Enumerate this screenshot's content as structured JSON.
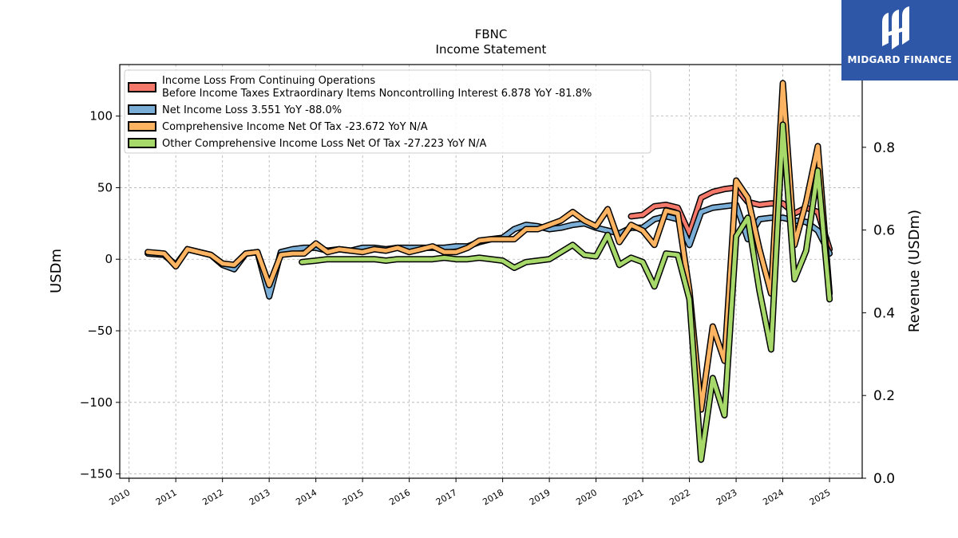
{
  "brand": {
    "name": "MIDGARD FINANCE",
    "logo_icon": "midgard-logo-icon",
    "color": "#2f57a8"
  },
  "chart_data": {
    "type": "line",
    "title": "FBNC",
    "subtitle": "Income Statement",
    "ylabel": "USDm",
    "y2label": "Revenue (USDm)",
    "ylim": [
      -153,
      136
    ],
    "y2lim": [
      0.0,
      1.0
    ],
    "xlim": [
      2009.8,
      2025.7
    ],
    "x_ticks": [
      "2010",
      "2011",
      "2012",
      "2013",
      "2014",
      "2015",
      "2016",
      "2017",
      "2018",
      "2019",
      "2020",
      "2021",
      "2022",
      "2023",
      "2024",
      "2025"
    ],
    "y_ticks": [
      "−150",
      "−100",
      "−50",
      "0",
      "50",
      "100"
    ],
    "y2_ticks": [
      "0.0",
      "0.2",
      "0.4",
      "0.6",
      "0.8"
    ],
    "grid": true,
    "legend_position": "top-left",
    "series": [
      {
        "name": "Income Loss From Continuing Operations",
        "name2": "Before Income Taxes Extraordinary Items Noncontrolling Interest  6.878 YoY -81.8%",
        "color": "#f4796b",
        "points": [
          [
            2020.75,
            30
          ],
          [
            2021.0,
            31
          ],
          [
            2021.25,
            37
          ],
          [
            2021.5,
            38
          ],
          [
            2021.75,
            36
          ],
          [
            2022.0,
            18
          ],
          [
            2022.25,
            43
          ],
          [
            2022.5,
            47
          ],
          [
            2022.75,
            49
          ],
          [
            2023.0,
            50
          ],
          [
            2023.25,
            40
          ],
          [
            2023.5,
            38
          ],
          [
            2023.75,
            39
          ],
          [
            2024.0,
            39
          ],
          [
            2024.25,
            32
          ],
          [
            2024.5,
            36
          ],
          [
            2024.75,
            33
          ],
          [
            2025.0,
            7
          ]
        ]
      },
      {
        "name": "Net Income Loss  3.551 YoY -88.0%",
        "color": "#7aaed6",
        "points": [
          [
            2010.4,
            4
          ],
          [
            2010.75,
            3
          ],
          [
            2011.0,
            -4
          ],
          [
            2011.25,
            7
          ],
          [
            2011.5,
            5
          ],
          [
            2011.75,
            3
          ],
          [
            2012.0,
            -4
          ],
          [
            2012.25,
            -7
          ],
          [
            2012.5,
            4
          ],
          [
            2012.75,
            5
          ],
          [
            2013.0,
            -26
          ],
          [
            2013.25,
            5
          ],
          [
            2013.5,
            7
          ],
          [
            2013.75,
            8
          ],
          [
            2014.0,
            8
          ],
          [
            2014.25,
            6
          ],
          [
            2014.5,
            7
          ],
          [
            2014.75,
            6
          ],
          [
            2015.0,
            8
          ],
          [
            2015.25,
            8
          ],
          [
            2015.5,
            7
          ],
          [
            2015.75,
            8
          ],
          [
            2016.0,
            8
          ],
          [
            2016.25,
            8
          ],
          [
            2016.5,
            8
          ],
          [
            2016.75,
            8
          ],
          [
            2017.0,
            9
          ],
          [
            2017.25,
            9
          ],
          [
            2017.5,
            12
          ],
          [
            2017.75,
            14
          ],
          [
            2018.0,
            15
          ],
          [
            2018.25,
            21
          ],
          [
            2018.5,
            24
          ],
          [
            2018.75,
            23
          ],
          [
            2019.0,
            21
          ],
          [
            2019.25,
            22
          ],
          [
            2019.5,
            24
          ],
          [
            2019.75,
            25
          ],
          [
            2020.0,
            22
          ],
          [
            2020.25,
            20
          ],
          [
            2020.5,
            18
          ],
          [
            2020.75,
            22
          ],
          [
            2021.0,
            22
          ],
          [
            2021.25,
            28
          ],
          [
            2021.5,
            30
          ],
          [
            2021.75,
            28
          ],
          [
            2022.0,
            10
          ],
          [
            2022.25,
            33
          ],
          [
            2022.5,
            36
          ],
          [
            2022.75,
            37
          ],
          [
            2023.0,
            38
          ],
          [
            2023.25,
            14
          ],
          [
            2023.5,
            28
          ],
          [
            2023.75,
            29
          ],
          [
            2024.0,
            29
          ],
          [
            2024.25,
            27
          ],
          [
            2024.5,
            26
          ],
          [
            2024.75,
            20
          ],
          [
            2025.0,
            4
          ]
        ]
      },
      {
        "name": "Comprehensive Income Net Of Tax  -23.672 YoY N/A",
        "color": "#fdb462",
        "points": [
          [
            2010.4,
            5
          ],
          [
            2010.75,
            4
          ],
          [
            2011.0,
            -5
          ],
          [
            2011.25,
            7
          ],
          [
            2011.5,
            5
          ],
          [
            2011.75,
            3
          ],
          [
            2012.0,
            -3
          ],
          [
            2012.25,
            -4
          ],
          [
            2012.5,
            4
          ],
          [
            2012.75,
            5
          ],
          [
            2013.0,
            -18
          ],
          [
            2013.25,
            3
          ],
          [
            2013.5,
            4
          ],
          [
            2013.75,
            4
          ],
          [
            2014.0,
            11
          ],
          [
            2014.25,
            5
          ],
          [
            2014.5,
            7
          ],
          [
            2014.75,
            6
          ],
          [
            2015.0,
            5
          ],
          [
            2015.25,
            7
          ],
          [
            2015.5,
            6
          ],
          [
            2015.75,
            8
          ],
          [
            2016.0,
            5
          ],
          [
            2016.25,
            7
          ],
          [
            2016.5,
            9
          ],
          [
            2016.75,
            5
          ],
          [
            2017.0,
            5
          ],
          [
            2017.25,
            8
          ],
          [
            2017.5,
            13
          ],
          [
            2017.75,
            14
          ],
          [
            2018.0,
            14
          ],
          [
            2018.25,
            14
          ],
          [
            2018.5,
            21
          ],
          [
            2018.75,
            21
          ],
          [
            2019.0,
            24
          ],
          [
            2019.25,
            27
          ],
          [
            2019.5,
            33
          ],
          [
            2019.75,
            27
          ],
          [
            2020.0,
            23
          ],
          [
            2020.25,
            35
          ],
          [
            2020.5,
            12
          ],
          [
            2020.75,
            24
          ],
          [
            2021.0,
            20
          ],
          [
            2021.25,
            10
          ],
          [
            2021.5,
            34
          ],
          [
            2021.75,
            32
          ],
          [
            2022.0,
            -22
          ],
          [
            2022.25,
            -105
          ],
          [
            2022.5,
            -47
          ],
          [
            2022.75,
            -71
          ],
          [
            2023.0,
            55
          ],
          [
            2023.25,
            43
          ],
          [
            2023.5,
            7
          ],
          [
            2023.75,
            -24
          ],
          [
            2024.0,
            123
          ],
          [
            2024.25,
            10
          ],
          [
            2024.5,
            40
          ],
          [
            2024.75,
            79
          ],
          [
            2025.0,
            -24
          ]
        ]
      },
      {
        "name": "Other Comprehensive Income Loss Net Of Tax  -27.223 YoY N/A",
        "color": "#a6d96a",
        "points": [
          [
            2013.7,
            -2
          ],
          [
            2014.0,
            -1
          ],
          [
            2014.25,
            0
          ],
          [
            2014.5,
            0
          ],
          [
            2014.75,
            0
          ],
          [
            2015.0,
            0
          ],
          [
            2015.25,
            0
          ],
          [
            2015.5,
            -1
          ],
          [
            2015.75,
            0
          ],
          [
            2016.0,
            0
          ],
          [
            2016.25,
            0
          ],
          [
            2016.5,
            0
          ],
          [
            2016.75,
            1
          ],
          [
            2017.0,
            0
          ],
          [
            2017.25,
            0
          ],
          [
            2017.5,
            1
          ],
          [
            2017.75,
            0
          ],
          [
            2018.0,
            -1
          ],
          [
            2018.25,
            -6
          ],
          [
            2018.5,
            -2
          ],
          [
            2018.75,
            -1
          ],
          [
            2019.0,
            0
          ],
          [
            2019.25,
            5
          ],
          [
            2019.5,
            10
          ],
          [
            2019.75,
            3
          ],
          [
            2020.0,
            2
          ],
          [
            2020.25,
            17
          ],
          [
            2020.5,
            -4
          ],
          [
            2020.75,
            1
          ],
          [
            2021.0,
            -2
          ],
          [
            2021.25,
            -19
          ],
          [
            2021.5,
            4
          ],
          [
            2021.75,
            3
          ],
          [
            2022.0,
            -28
          ],
          [
            2022.25,
            -140
          ],
          [
            2022.5,
            -83
          ],
          [
            2022.75,
            -109
          ],
          [
            2023.0,
            16
          ],
          [
            2023.25,
            29
          ],
          [
            2023.5,
            -22
          ],
          [
            2023.75,
            -63
          ],
          [
            2024.0,
            94
          ],
          [
            2024.25,
            -14
          ],
          [
            2024.5,
            6
          ],
          [
            2024.75,
            62
          ],
          [
            2025.0,
            -28
          ]
        ]
      }
    ]
  }
}
